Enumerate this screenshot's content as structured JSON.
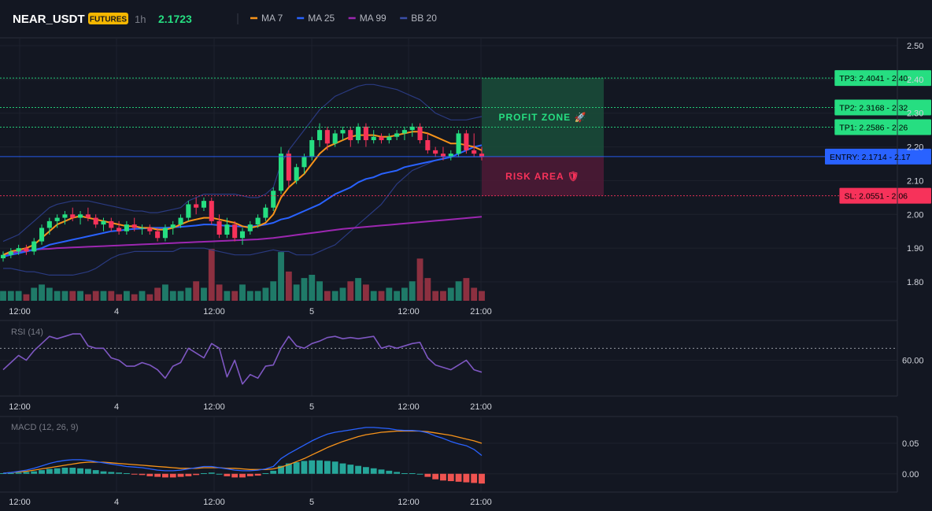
{
  "header": {
    "symbol": "NEAR_USDT",
    "badge": "FUTURES",
    "timeframe": "1h",
    "price": "2.1723",
    "legend": [
      {
        "label": "MA 7",
        "color": "#f7931a"
      },
      {
        "label": "MA 25",
        "color": "#2962ff"
      },
      {
        "label": "MA 99",
        "color": "#9c27b0"
      },
      {
        "label": "BB 20",
        "color": "#3b4fa8"
      }
    ]
  },
  "colors": {
    "up": "#26de81",
    "down": "#f7325a",
    "vol_up": "#1f7a68",
    "vol_down": "#8c3040",
    "rsi": "#7e57c2",
    "macd": "#2962ff",
    "signal": "#f7931a",
    "hist_up": "#26a69a",
    "hist_down": "#ef5350"
  },
  "chart_data": [
    {
      "type": "candlestick",
      "ylim": [
        1.73,
        2.52
      ],
      "yticks": [
        "2.50",
        "2.40",
        "2.30",
        "2.20",
        "2.10",
        "2.00",
        "1.90",
        "1.80"
      ],
      "xticks": [
        "12:00",
        "4",
        "12:00",
        "5",
        "12:00",
        "21:00"
      ],
      "candles": [
        [
          1.87,
          1.89,
          1.86,
          1.88
        ],
        [
          1.88,
          1.9,
          1.87,
          1.89
        ],
        [
          1.89,
          1.91,
          1.88,
          1.9
        ],
        [
          1.9,
          1.91,
          1.88,
          1.89
        ],
        [
          1.89,
          1.93,
          1.88,
          1.92
        ],
        [
          1.92,
          1.97,
          1.91,
          1.96
        ],
        [
          1.96,
          1.99,
          1.94,
          1.98
        ],
        [
          1.98,
          2.0,
          1.96,
          1.99
        ],
        [
          1.99,
          2.01,
          1.97,
          2.0
        ],
        [
          2.0,
          2.02,
          1.98,
          1.99
        ],
        [
          1.99,
          2.01,
          1.97,
          2.0
        ],
        [
          2.0,
          2.02,
          1.98,
          1.99
        ],
        [
          1.99,
          2.0,
          1.96,
          1.97
        ],
        [
          1.97,
          1.99,
          1.95,
          1.98
        ],
        [
          1.98,
          1.99,
          1.95,
          1.96
        ],
        [
          1.96,
          1.98,
          1.94,
          1.95
        ],
        [
          1.95,
          1.98,
          1.94,
          1.97
        ],
        [
          1.97,
          1.99,
          1.95,
          1.96
        ],
        [
          1.96,
          1.97,
          1.94,
          1.96
        ],
        [
          1.96,
          1.97,
          1.94,
          1.95
        ],
        [
          1.95,
          1.96,
          1.92,
          1.93
        ],
        [
          1.93,
          1.97,
          1.92,
          1.96
        ],
        [
          1.96,
          1.98,
          1.94,
          1.97
        ],
        [
          1.97,
          2.0,
          1.96,
          1.99
        ],
        [
          1.99,
          2.04,
          1.98,
          2.03
        ],
        [
          2.03,
          2.05,
          2.0,
          2.02
        ],
        [
          2.02,
          2.05,
          2.01,
          2.04
        ],
        [
          2.04,
          2.05,
          1.97,
          1.98
        ],
        [
          1.98,
          2.0,
          1.93,
          1.94
        ],
        [
          1.94,
          1.99,
          1.93,
          1.97
        ],
        [
          1.97,
          1.98,
          1.92,
          1.93
        ],
        [
          1.93,
          1.96,
          1.91,
          1.95
        ],
        [
          1.95,
          1.98,
          1.94,
          1.97
        ],
        [
          1.97,
          2.0,
          1.96,
          1.99
        ],
        [
          1.99,
          2.03,
          1.98,
          2.02
        ],
        [
          2.02,
          2.08,
          2.01,
          2.07
        ],
        [
          2.07,
          2.2,
          2.06,
          2.18
        ],
        [
          2.18,
          2.19,
          2.08,
          2.1
        ],
        [
          2.1,
          2.15,
          2.09,
          2.14
        ],
        [
          2.14,
          2.18,
          2.12,
          2.17
        ],
        [
          2.17,
          2.23,
          2.16,
          2.22
        ],
        [
          2.22,
          2.27,
          2.2,
          2.25
        ],
        [
          2.25,
          2.26,
          2.19,
          2.21
        ],
        [
          2.21,
          2.25,
          2.2,
          2.24
        ],
        [
          2.24,
          2.26,
          2.22,
          2.25
        ],
        [
          2.25,
          2.26,
          2.2,
          2.22
        ],
        [
          2.22,
          2.27,
          2.21,
          2.26
        ],
        [
          2.26,
          2.27,
          2.2,
          2.22
        ],
        [
          2.22,
          2.25,
          2.21,
          2.23
        ],
        [
          2.23,
          2.24,
          2.21,
          2.22
        ],
        [
          2.22,
          2.24,
          2.21,
          2.23
        ],
        [
          2.23,
          2.25,
          2.22,
          2.24
        ],
        [
          2.24,
          2.26,
          2.22,
          2.25
        ],
        [
          2.25,
          2.27,
          2.23,
          2.26
        ],
        [
          2.26,
          2.27,
          2.21,
          2.22
        ],
        [
          2.22,
          2.24,
          2.18,
          2.19
        ],
        [
          2.19,
          2.2,
          2.17,
          2.18
        ],
        [
          2.18,
          2.2,
          2.16,
          2.17
        ],
        [
          2.17,
          2.19,
          2.16,
          2.18
        ],
        [
          2.18,
          2.25,
          2.17,
          2.24
        ],
        [
          2.24,
          2.25,
          2.18,
          2.19
        ],
        [
          2.19,
          2.24,
          2.17,
          2.18
        ],
        [
          2.18,
          2.2,
          2.16,
          2.17
        ]
      ],
      "volume": [
        3,
        3,
        3,
        2,
        4,
        5,
        4,
        3,
        3,
        3,
        3,
        2,
        3,
        3,
        3,
        2,
        3,
        2,
        3,
        2,
        4,
        5,
        3,
        3,
        4,
        6,
        4,
        16,
        5,
        3,
        3,
        5,
        3,
        3,
        4,
        6,
        15,
        9,
        5,
        7,
        8,
        6,
        3,
        3,
        4,
        6,
        7,
        5,
        3,
        3,
        4,
        3,
        4,
        6,
        13,
        7,
        3,
        3,
        4,
        6,
        7,
        4,
        3
      ],
      "ma7": [
        1.88,
        1.89,
        1.895,
        1.9,
        1.91,
        1.93,
        1.95,
        1.97,
        1.98,
        1.99,
        1.995,
        1.99,
        1.985,
        1.98,
        1.975,
        1.97,
        1.965,
        1.965,
        1.96,
        1.96,
        1.955,
        1.955,
        1.96,
        1.97,
        1.98,
        1.985,
        1.99,
        1.99,
        1.985,
        1.98,
        1.975,
        1.965,
        1.96,
        1.965,
        1.975,
        2.0,
        2.05,
        2.08,
        2.1,
        2.12,
        2.15,
        2.18,
        2.2,
        2.21,
        2.22,
        2.23,
        2.235,
        2.235,
        2.235,
        2.23,
        2.23,
        2.235,
        2.24,
        2.245,
        2.245,
        2.24,
        2.23,
        2.22,
        2.21,
        2.21,
        2.205,
        2.2,
        2.19
      ],
      "ma25": [
        1.875,
        1.88,
        1.885,
        1.89,
        1.895,
        1.9,
        1.91,
        1.915,
        1.92,
        1.925,
        1.93,
        1.935,
        1.94,
        1.945,
        1.95,
        1.952,
        1.955,
        1.957,
        1.958,
        1.96,
        1.96,
        1.96,
        1.962,
        1.963,
        1.965,
        1.967,
        1.97,
        1.97,
        1.968,
        1.966,
        1.965,
        1.964,
        1.964,
        1.966,
        1.97,
        1.975,
        1.985,
        1.99,
        2.0,
        2.01,
        2.02,
        2.03,
        2.045,
        2.06,
        2.07,
        2.08,
        2.095,
        2.105,
        2.11,
        2.12,
        2.125,
        2.13,
        2.14,
        2.145,
        2.15,
        2.155,
        2.16,
        2.165,
        2.17,
        2.18,
        2.19,
        2.2,
        2.205
      ],
      "ma99": [
        1.88,
        1.885,
        1.89,
        1.893,
        1.895,
        1.897,
        1.898,
        1.9,
        1.901,
        1.902,
        1.903,
        1.904,
        1.905,
        1.906,
        1.907,
        1.908,
        1.909,
        1.91,
        1.911,
        1.912,
        1.913,
        1.914,
        1.915,
        1.916,
        1.917,
        1.918,
        1.919,
        1.92,
        1.921,
        1.922,
        1.923,
        1.924,
        1.925,
        1.926,
        1.928,
        1.93,
        1.933,
        1.936,
        1.939,
        1.942,
        1.945,
        1.948,
        1.951,
        1.954,
        1.957,
        1.959,
        1.961,
        1.963,
        1.965,
        1.967,
        1.969,
        1.971,
        1.973,
        1.975,
        1.977,
        1.979,
        1.981,
        1.983,
        1.985,
        1.987,
        1.989,
        1.991,
        1.993
      ],
      "bb_upper": [
        1.92,
        1.93,
        1.94,
        1.96,
        1.98,
        2.0,
        2.02,
        2.03,
        2.035,
        2.04,
        2.04,
        2.04,
        2.035,
        2.03,
        2.025,
        2.02,
        2.015,
        2.01,
        2.01,
        2.005,
        2.005,
        2.01,
        2.015,
        2.02,
        2.04,
        2.05,
        2.06,
        2.06,
        2.06,
        2.06,
        2.06,
        2.055,
        2.05,
        2.05,
        2.06,
        2.08,
        2.15,
        2.19,
        2.22,
        2.25,
        2.28,
        2.31,
        2.33,
        2.35,
        2.36,
        2.37,
        2.38,
        2.385,
        2.385,
        2.38,
        2.375,
        2.37,
        2.36,
        2.35,
        2.34,
        2.32,
        2.3,
        2.29,
        2.28,
        2.28,
        2.28,
        2.285,
        2.29
      ],
      "bb_lower": [
        1.84,
        1.84,
        1.835,
        1.83,
        1.83,
        1.825,
        1.82,
        1.82,
        1.82,
        1.82,
        1.825,
        1.83,
        1.84,
        1.855,
        1.87,
        1.88,
        1.885,
        1.89,
        1.89,
        1.89,
        1.89,
        1.89,
        1.89,
        1.9,
        1.9,
        1.9,
        1.9,
        1.895,
        1.89,
        1.885,
        1.88,
        1.88,
        1.88,
        1.885,
        1.89,
        1.895,
        1.89,
        1.89,
        1.88,
        1.88,
        1.88,
        1.89,
        1.9,
        1.91,
        1.93,
        1.95,
        1.97,
        1.99,
        2.01,
        2.03,
        2.06,
        2.09,
        2.11,
        2.13,
        2.14,
        2.15,
        2.16,
        2.165,
        2.17,
        2.17,
        2.17,
        2.17,
        2.17
      ],
      "levels": [
        {
          "label": "TP3: 2.4041 - 2.40",
          "value": 2.4041,
          "color": "#26de81"
        },
        {
          "label": "TP2: 2.3168 - 2.32",
          "value": 2.3168,
          "color": "#26de81"
        },
        {
          "label": "TP1: 2.2586 - 2.26",
          "value": 2.2586,
          "color": "#26de81"
        },
        {
          "label": "ENTRY: 2.1714 - 2.17",
          "value": 2.1714,
          "color": "#2962ff"
        },
        {
          "label": "SL: 2.0551 - 2.06",
          "value": 2.0551,
          "color": "#f7325a"
        }
      ],
      "zones": {
        "profit": "PROFIT ZONE 🚀",
        "risk": "RISK AREA 🛡"
      }
    },
    {
      "type": "line",
      "title": "RSI (14)",
      "ylim": [
        30,
        90
      ],
      "yticks": [
        "60.00"
      ],
      "reference": 70,
      "xticks": [
        "12:00",
        "4",
        "12:00",
        "5",
        "12:00",
        "21:00"
      ],
      "values": [
        52,
        58,
        64,
        60,
        68,
        74,
        80,
        78,
        80,
        82,
        82,
        72,
        70,
        70,
        62,
        60,
        55,
        55,
        58,
        56,
        52,
        45,
        55,
        58,
        70,
        66,
        62,
        74,
        70,
        46,
        60,
        40,
        48,
        45,
        55,
        56,
        70,
        80,
        72,
        70,
        74,
        76,
        79,
        80,
        78,
        79,
        78,
        79,
        80,
        70,
        72,
        70,
        72,
        74,
        75,
        62,
        56,
        54,
        52,
        56,
        60,
        52,
        50
      ]
    },
    {
      "type": "line",
      "title": "MACD (12, 26, 9)",
      "ylim": [
        -0.03,
        0.09
      ],
      "yticks": [
        "0.05",
        "0.00"
      ],
      "xticks": [
        "12:00",
        "4",
        "12:00",
        "5",
        "12:00",
        "21:00"
      ],
      "macd": [
        0.001,
        0.002,
        0.004,
        0.006,
        0.009,
        0.013,
        0.017,
        0.02,
        0.022,
        0.023,
        0.023,
        0.022,
        0.02,
        0.018,
        0.016,
        0.014,
        0.012,
        0.011,
        0.01,
        0.008,
        0.006,
        0.005,
        0.005,
        0.006,
        0.008,
        0.01,
        0.012,
        0.012,
        0.01,
        0.008,
        0.006,
        0.005,
        0.005,
        0.006,
        0.008,
        0.012,
        0.025,
        0.033,
        0.04,
        0.047,
        0.054,
        0.06,
        0.065,
        0.068,
        0.07,
        0.072,
        0.074,
        0.076,
        0.076,
        0.075,
        0.074,
        0.072,
        0.071,
        0.071,
        0.07,
        0.067,
        0.062,
        0.058,
        0.053,
        0.049,
        0.046,
        0.04,
        0.03
      ],
      "signal": [
        0.001,
        0.002,
        0.003,
        0.004,
        0.006,
        0.008,
        0.01,
        0.012,
        0.014,
        0.016,
        0.018,
        0.019,
        0.019,
        0.019,
        0.018,
        0.017,
        0.016,
        0.015,
        0.014,
        0.013,
        0.012,
        0.011,
        0.01,
        0.009,
        0.009,
        0.009,
        0.01,
        0.01,
        0.01,
        0.009,
        0.009,
        0.008,
        0.007,
        0.007,
        0.007,
        0.008,
        0.011,
        0.015,
        0.02,
        0.025,
        0.031,
        0.037,
        0.043,
        0.048,
        0.053,
        0.057,
        0.061,
        0.064,
        0.066,
        0.068,
        0.069,
        0.07,
        0.07,
        0.07,
        0.07,
        0.069,
        0.067,
        0.065,
        0.063,
        0.06,
        0.057,
        0.054,
        0.05
      ],
      "hist": [
        0.001,
        0.001,
        0.002,
        0.003,
        0.004,
        0.006,
        0.008,
        0.009,
        0.01,
        0.01,
        0.009,
        0.008,
        0.006,
        0.004,
        0.003,
        0.002,
        0.001,
        -0.001,
        -0.002,
        -0.004,
        -0.005,
        -0.006,
        -0.006,
        -0.005,
        -0.004,
        -0.002,
        0.001,
        0.002,
        0.0,
        -0.004,
        -0.006,
        -0.006,
        -0.004,
        -0.003,
        0.001,
        0.005,
        0.013,
        0.017,
        0.019,
        0.021,
        0.022,
        0.022,
        0.021,
        0.02,
        0.017,
        0.015,
        0.013,
        0.011,
        0.009,
        0.007,
        0.005,
        0.003,
        0.001,
        0.001,
        0.0,
        -0.005,
        -0.009,
        -0.011,
        -0.012,
        -0.013,
        -0.014,
        -0.015,
        -0.016
      ]
    }
  ]
}
